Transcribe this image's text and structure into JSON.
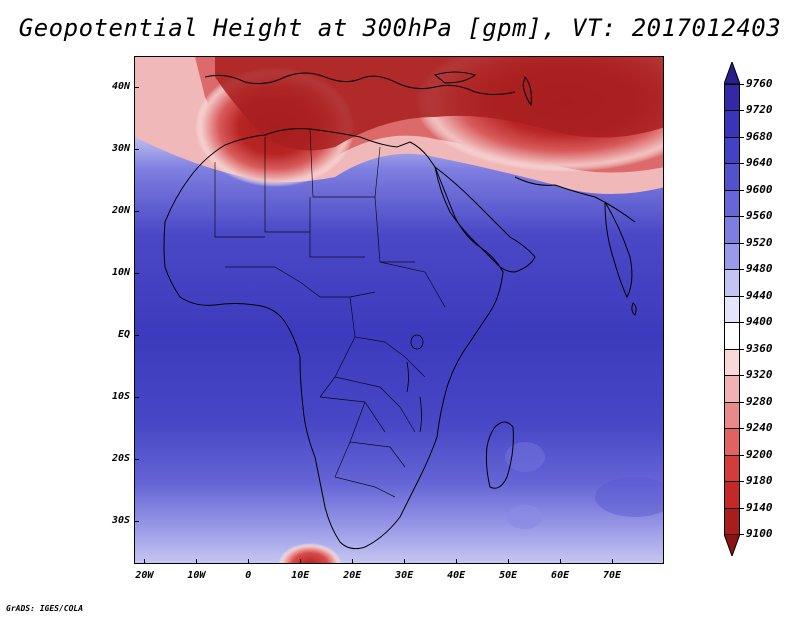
{
  "title": "Geopotential Height at 300hPa [gpm], VT: 2017012403",
  "footer": "GrADS: IGES/COLA",
  "map": {
    "lat_labels": [
      "40N",
      "30N",
      "20N",
      "10N",
      "EQ",
      "10S",
      "20S",
      "30S"
    ],
    "lon_labels": [
      "20W",
      "10W",
      "0",
      "10E",
      "20E",
      "30E",
      "40E",
      "50E",
      "60E",
      "70E"
    ],
    "lat_range": [
      -37,
      45
    ],
    "lon_range": [
      -22,
      80
    ],
    "variable": "Geopotential Height at 300hPa",
    "units": "gpm"
  },
  "colorbar": {
    "levels": [
      "9760",
      "9720",
      "9680",
      "9640",
      "9600",
      "9560",
      "9520",
      "9480",
      "9440",
      "9400",
      "9360",
      "9320",
      "9280",
      "9240",
      "9200",
      "9180",
      "9140",
      "9100"
    ],
    "colors": [
      "#2a1e8a",
      "#3428a8",
      "#3a34b8",
      "#4242c4",
      "#5252cc",
      "#6666d8",
      "#7e7ee2",
      "#9a9aea",
      "#c4c4f4",
      "#e4e4fa",
      "#ffffff",
      "#f8d8d8",
      "#f0b2b2",
      "#e88a8a",
      "#e06262",
      "#d43c3c",
      "#c42828",
      "#a81e1e",
      "#8a1414"
    ]
  }
}
